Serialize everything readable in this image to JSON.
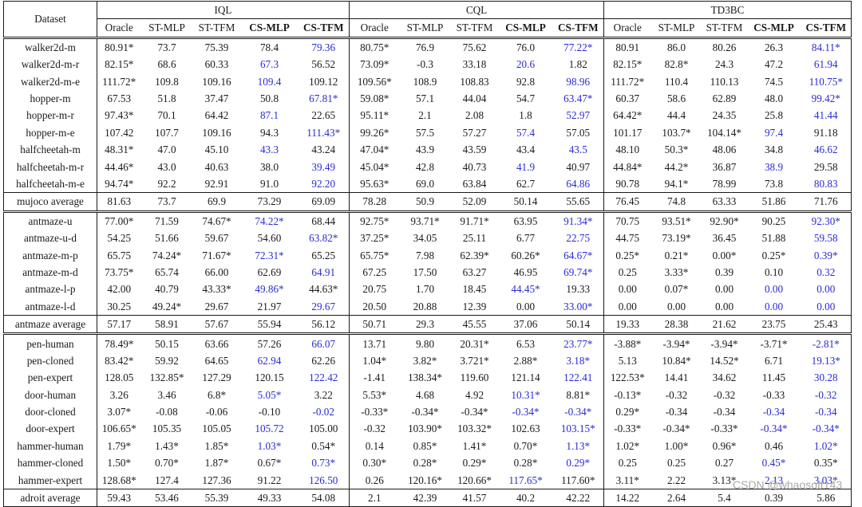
{
  "header": {
    "dataset_label": "Dataset",
    "groups": [
      "IQL",
      "CQL",
      "TD3BC"
    ],
    "methods": [
      "Oracle",
      "ST-MLP",
      "ST-TFM",
      "CS-MLP",
      "CS-TFM"
    ],
    "bold_methods": [
      "CS-MLP",
      "CS-TFM"
    ]
  },
  "sections": [
    {
      "rows": [
        {
          "name": "walker2d-m",
          "cells": [
            "80.91*",
            "73.7",
            "75.39",
            "78.4",
            "79.36",
            "80.75*",
            "76.9",
            "75.62",
            "76.0",
            "77.22*",
            "80.91",
            "86.0",
            "80.26",
            "26.3",
            "84.11*"
          ],
          "blue": [
            4,
            9,
            14
          ]
        },
        {
          "name": "walker2d-m-r",
          "cells": [
            "82.15*",
            "68.6",
            "60.33",
            "67.3",
            "56.52",
            "73.09*",
            "-0.3",
            "33.18",
            "20.6",
            "1.82",
            "82.15*",
            "82.8*",
            "24.3",
            "47.2",
            "61.94"
          ],
          "blue": [
            3,
            8,
            14
          ]
        },
        {
          "name": "walker2d-m-e",
          "cells": [
            "111.72*",
            "109.8",
            "109.16",
            "109.4",
            "109.12",
            "109.56*",
            "108.9",
            "108.83",
            "92.8",
            "98.96",
            "111.72*",
            "110.4",
            "110.13",
            "74.5",
            "110.75*"
          ],
          "blue": [
            3,
            9,
            14
          ]
        },
        {
          "name": "hopper-m",
          "cells": [
            "67.53",
            "51.8",
            "37.47",
            "50.8",
            "67.81*",
            "59.08*",
            "57.1",
            "44.04",
            "54.7",
            "63.47*",
            "60.37",
            "58.6",
            "62.89",
            "48.0",
            "99.42*"
          ],
          "blue": [
            4,
            9,
            14
          ]
        },
        {
          "name": "hopper-m-r",
          "cells": [
            "97.43*",
            "70.1",
            "64.42",
            "87.1",
            "22.65",
            "95.11*",
            "2.1",
            "2.08",
            "1.8",
            "52.97",
            "64.42*",
            "44.4",
            "24.35",
            "25.8",
            "41.44"
          ],
          "blue": [
            3,
            9,
            14
          ]
        },
        {
          "name": "hopper-m-e",
          "cells": [
            "107.42",
            "107.7",
            "109.16",
            "94.3",
            "111.43*",
            "99.26*",
            "57.5",
            "57.27",
            "57.4",
            "57.05",
            "101.17",
            "103.7*",
            "104.14*",
            "97.4",
            "91.18"
          ],
          "blue": [
            4,
            8,
            13
          ]
        },
        {
          "name": "halfcheetah-m",
          "cells": [
            "48.31*",
            "47.0",
            "45.10",
            "43.3",
            "43.24",
            "47.04*",
            "43.9",
            "43.59",
            "43.4",
            "43.5",
            "48.10",
            "50.3*",
            "48.06",
            "34.8",
            "46.62"
          ],
          "blue": [
            3,
            9,
            14
          ]
        },
        {
          "name": "halfcheetah-m-r",
          "cells": [
            "44.46*",
            "43.0",
            "40.63",
            "38.0",
            "39.49",
            "45.04*",
            "42.8",
            "40.73",
            "41.9",
            "40.97",
            "44.84*",
            "44.2*",
            "36.87",
            "38.9",
            "29.58"
          ],
          "blue": [
            4,
            8,
            13
          ]
        },
        {
          "name": "halfcheetah-m-e",
          "cells": [
            "94.74*",
            "92.2",
            "92.91",
            "91.0",
            "92.20",
            "95.63*",
            "69.0",
            "63.84",
            "62.7",
            "64.86",
            "90.78",
            "94.1*",
            "78.99",
            "73.8",
            "80.83"
          ],
          "blue": [
            4,
            9,
            14
          ]
        }
      ],
      "average": {
        "name": "mujoco average",
        "cells": [
          "81.63",
          "73.7",
          "69.9",
          "73.29",
          "69.09",
          "78.28",
          "50.9",
          "52.09",
          "50.14",
          "55.65",
          "76.45",
          "74.8",
          "63.33",
          "51.86",
          "71.76"
        ]
      }
    },
    {
      "rows": [
        {
          "name": "antmaze-u",
          "cells": [
            "77.00*",
            "71.59",
            "74.67*",
            "74.22*",
            "68.44",
            "92.75*",
            "93.71*",
            "91.71*",
            "63.95",
            "91.34*",
            "70.75",
            "93.51*",
            "92.90*",
            "90.25",
            "92.30*"
          ],
          "blue": [
            3,
            9,
            14
          ]
        },
        {
          "name": "antmaze-u-d",
          "cells": [
            "54.25",
            "51.66",
            "59.67",
            "54.60",
            "63.82*",
            "37.25*",
            "34.05",
            "25.11",
            "6.77",
            "22.75",
            "44.75",
            "73.19*",
            "36.45",
            "51.88",
            "59.58"
          ],
          "blue": [
            4,
            9,
            14
          ]
        },
        {
          "name": "antmaze-m-p",
          "cells": [
            "65.75",
            "74.24*",
            "71.67*",
            "72.31*",
            "65.25",
            "65.75*",
            "7.98",
            "62.39*",
            "60.26*",
            "64.67*",
            "0.25*",
            "0.21*",
            "0.00*",
            "0.25*",
            "0.39*"
          ],
          "blue": [
            3,
            9,
            14
          ]
        },
        {
          "name": "antmaze-m-d",
          "cells": [
            "73.75*",
            "65.74",
            "66.00",
            "62.69",
            "64.91",
            "67.25",
            "17.50",
            "63.27",
            "46.95",
            "69.74*",
            "0.25",
            "3.33*",
            "0.39",
            "0.10",
            "0.32"
          ],
          "blue": [
            4,
            9,
            14
          ]
        },
        {
          "name": "antmaze-l-p",
          "cells": [
            "42.00",
            "40.79",
            "43.33*",
            "49.86*",
            "44.63*",
            "20.75",
            "1.70",
            "18.45",
            "44.45*",
            "19.33",
            "0.00",
            "0.07*",
            "0.00",
            "0.00",
            "0.00"
          ],
          "blue": [
            3,
            8,
            13,
            14
          ]
        },
        {
          "name": "antmaze-l-d",
          "cells": [
            "30.25",
            "49.24*",
            "29.67",
            "21.97",
            "29.67",
            "20.50",
            "20.88",
            "12.39",
            "0.00",
            "33.00*",
            "0.00",
            "0.00",
            "0.00",
            "0.00",
            "0.00"
          ],
          "blue": [
            4,
            9,
            13,
            14
          ]
        }
      ],
      "average": {
        "name": "antmaze average",
        "cells": [
          "57.17",
          "58.91",
          "57.67",
          "55.94",
          "56.12",
          "50.71",
          "29.3",
          "45.55",
          "37.06",
          "50.14",
          "19.33",
          "28.38",
          "21.62",
          "23.75",
          "25.43"
        ]
      }
    },
    {
      "rows": [
        {
          "name": "pen-human",
          "cells": [
            "78.49*",
            "50.15",
            "63.66",
            "57.26",
            "66.07",
            "13.71",
            "9.80",
            "20.31*",
            "6.53",
            "23.77*",
            "-3.88*",
            "-3.94*",
            "-3.94*",
            "-3.71*",
            "-2.81*"
          ],
          "blue": [
            4,
            9,
            14
          ]
        },
        {
          "name": "pen-cloned",
          "cells": [
            "83.42*",
            "59.92",
            "64.65",
            "62.94",
            "62.26",
            "1.04*",
            "3.82*",
            "3.721*",
            "2.88*",
            "3.18*",
            "5.13",
            "10.84*",
            "14.52*",
            "6.71",
            "19.13*"
          ],
          "blue": [
            3,
            9,
            14
          ]
        },
        {
          "name": "pen-expert",
          "cells": [
            "128.05",
            "132.85*",
            "127.29",
            "120.15",
            "122.42",
            "-1.41",
            "138.34*",
            "119.60",
            "121.14",
            "122.41",
            "122.53*",
            "14.41",
            "34.62",
            "11.45",
            "30.28"
          ],
          "blue": [
            4,
            9,
            14
          ]
        },
        {
          "name": "door-human",
          "cells": [
            "3.26",
            "3.46",
            "6.8*",
            "5.05*",
            "3.22",
            "5.53*",
            "4.68",
            "4.92",
            "10.31*",
            "8.81*",
            "-0.13*",
            "-0.32",
            "-0.32",
            "-0.33",
            "-0.32"
          ],
          "blue": [
            3,
            8,
            14
          ]
        },
        {
          "name": "door-cloned",
          "cells": [
            "3.07*",
            "-0.08",
            "-0.06",
            "-0.10",
            "-0.02",
            "-0.33*",
            "-0.34*",
            "-0.34*",
            "-0.34*",
            "-0.34*",
            "0.29*",
            "-0.34",
            "-0.34",
            "-0.34",
            "-0.34"
          ],
          "blue": [
            4,
            8,
            9,
            13,
            14
          ]
        },
        {
          "name": "door-expert",
          "cells": [
            "106.65*",
            "105.35",
            "105.05",
            "105.72",
            "105.00",
            "-0.32",
            "103.90*",
            "103.32*",
            "102.63",
            "103.15*",
            "-0.33*",
            "-0.34*",
            "-0.33*",
            "-0.34*",
            "-0.34*"
          ],
          "blue": [
            3,
            9,
            13,
            14
          ]
        },
        {
          "name": "hammer-human",
          "cells": [
            "1.79*",
            "1.43*",
            "1.85*",
            "1.03*",
            "0.54*",
            "0.14",
            "0.85*",
            "1.41*",
            "0.70*",
            "1.13*",
            "1.02*",
            "1.00*",
            "0.96*",
            "0.46",
            "1.02*"
          ],
          "blue": [
            3,
            9,
            14
          ]
        },
        {
          "name": "hammer-cloned",
          "cells": [
            "1.50*",
            "0.70*",
            "1.87*",
            "0.67*",
            "0.73*",
            "0.30*",
            "0.28*",
            "0.29*",
            "0.28*",
            "0.29*",
            "0.25",
            "0.25",
            "0.27",
            "0.45*",
            "0.35*"
          ],
          "blue": [
            4,
            9,
            13
          ]
        },
        {
          "name": "hammer-expert",
          "cells": [
            "128.68*",
            "127.4",
            "127.36",
            "91.22",
            "126.50",
            "0.26",
            "120.16*",
            "120.66*",
            "117.65*",
            "117.60*",
            "3.11*",
            "2.22",
            "3.13*",
            "2.13",
            "3.03*"
          ],
          "blue": [
            4,
            8,
            13,
            14
          ]
        }
      ],
      "average": {
        "name": "adroit average",
        "cells": [
          "59.43",
          "53.46",
          "55.39",
          "49.33",
          "54.08",
          "2.1",
          "42.39",
          "41.57",
          "40.2",
          "42.22",
          "14.22",
          "2.64",
          "5.4",
          "0.39",
          "5.86"
        ]
      }
    }
  ],
  "watermark": "CSDN @whaosoft143"
}
